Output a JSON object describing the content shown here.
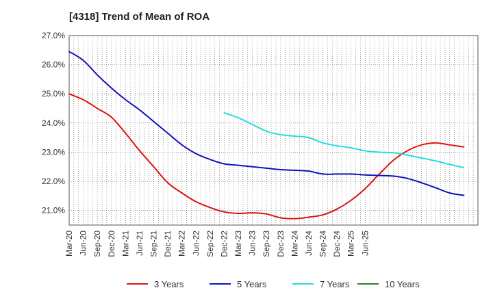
{
  "chart_data": {
    "type": "line",
    "title": "[4318]  Trend of Mean of ROA",
    "xlabel": "",
    "ylabel": "",
    "ylim": [
      20.5,
      27.0
    ],
    "yticks": [
      21.0,
      22.0,
      23.0,
      24.0,
      25.0,
      26.0,
      27.0
    ],
    "ytick_labels": [
      "21.0%",
      "22.0%",
      "23.0%",
      "24.0%",
      "25.0%",
      "26.0%",
      "27.0%"
    ],
    "x_tick_labels": [
      "Mar-20",
      "Jun-20",
      "Sep-20",
      "Dec-20",
      "Mar-21",
      "Jun-21",
      "Sep-21",
      "Dec-21",
      "Mar-22",
      "Jun-22",
      "Sep-22",
      "Dec-22",
      "Mar-23",
      "Jun-23",
      "Sep-23",
      "Dec-23",
      "Mar-24",
      "Jun-24",
      "Sep-24",
      "Dec-24",
      "Mar-25",
      "Jun-25"
    ],
    "grid": true,
    "legend_position": "bottom",
    "series": [
      {
        "name": "3 Years",
        "color": "#dd1111",
        "points": [
          [
            0,
            25.0
          ],
          [
            3,
            24.8
          ],
          [
            6,
            24.5
          ],
          [
            9,
            24.2
          ],
          [
            12,
            23.65
          ],
          [
            15,
            23.05
          ],
          [
            18,
            22.5
          ],
          [
            21,
            21.95
          ],
          [
            24,
            21.6
          ],
          [
            27,
            21.3
          ],
          [
            30,
            21.1
          ],
          [
            33,
            20.95
          ],
          [
            36,
            20.9
          ],
          [
            39,
            20.92
          ],
          [
            42,
            20.88
          ],
          [
            45,
            20.75
          ],
          [
            48,
            20.72
          ],
          [
            51,
            20.77
          ],
          [
            54,
            20.85
          ],
          [
            57,
            21.05
          ],
          [
            60,
            21.35
          ],
          [
            63,
            21.75
          ],
          [
            66,
            22.25
          ],
          [
            69,
            22.72
          ],
          [
            72,
            23.05
          ],
          [
            75,
            23.25
          ],
          [
            78,
            23.32
          ],
          [
            81,
            23.25
          ],
          [
            84,
            23.18
          ]
        ]
      },
      {
        "name": "5 Years",
        "color": "#1111bb",
        "points": [
          [
            0,
            26.45
          ],
          [
            3,
            26.15
          ],
          [
            6,
            25.65
          ],
          [
            9,
            25.2
          ],
          [
            12,
            24.8
          ],
          [
            15,
            24.45
          ],
          [
            18,
            24.05
          ],
          [
            21,
            23.65
          ],
          [
            24,
            23.25
          ],
          [
            27,
            22.95
          ],
          [
            30,
            22.75
          ],
          [
            33,
            22.6
          ],
          [
            36,
            22.55
          ],
          [
            39,
            22.5
          ],
          [
            42,
            22.45
          ],
          [
            45,
            22.4
          ],
          [
            48,
            22.38
          ],
          [
            51,
            22.35
          ],
          [
            54,
            22.25
          ],
          [
            57,
            22.25
          ],
          [
            60,
            22.25
          ],
          [
            63,
            22.22
          ],
          [
            66,
            22.2
          ],
          [
            69,
            22.18
          ],
          [
            72,
            22.1
          ],
          [
            75,
            21.95
          ],
          [
            78,
            21.78
          ],
          [
            81,
            21.6
          ],
          [
            84,
            21.52
          ]
        ]
      },
      {
        "name": "7 Years",
        "color": "#22dddd",
        "points": [
          [
            33,
            24.35
          ],
          [
            36,
            24.18
          ],
          [
            39,
            23.95
          ],
          [
            42,
            23.72
          ],
          [
            45,
            23.6
          ],
          [
            48,
            23.55
          ],
          [
            51,
            23.5
          ],
          [
            54,
            23.32
          ],
          [
            57,
            23.22
          ],
          [
            60,
            23.15
          ],
          [
            63,
            23.05
          ],
          [
            66,
            23.0
          ],
          [
            69,
            22.98
          ],
          [
            72,
            22.9
          ],
          [
            75,
            22.8
          ],
          [
            78,
            22.7
          ],
          [
            81,
            22.58
          ],
          [
            84,
            22.47
          ]
        ]
      },
      {
        "name": "10 Years",
        "color": "#228822",
        "points": []
      }
    ]
  }
}
